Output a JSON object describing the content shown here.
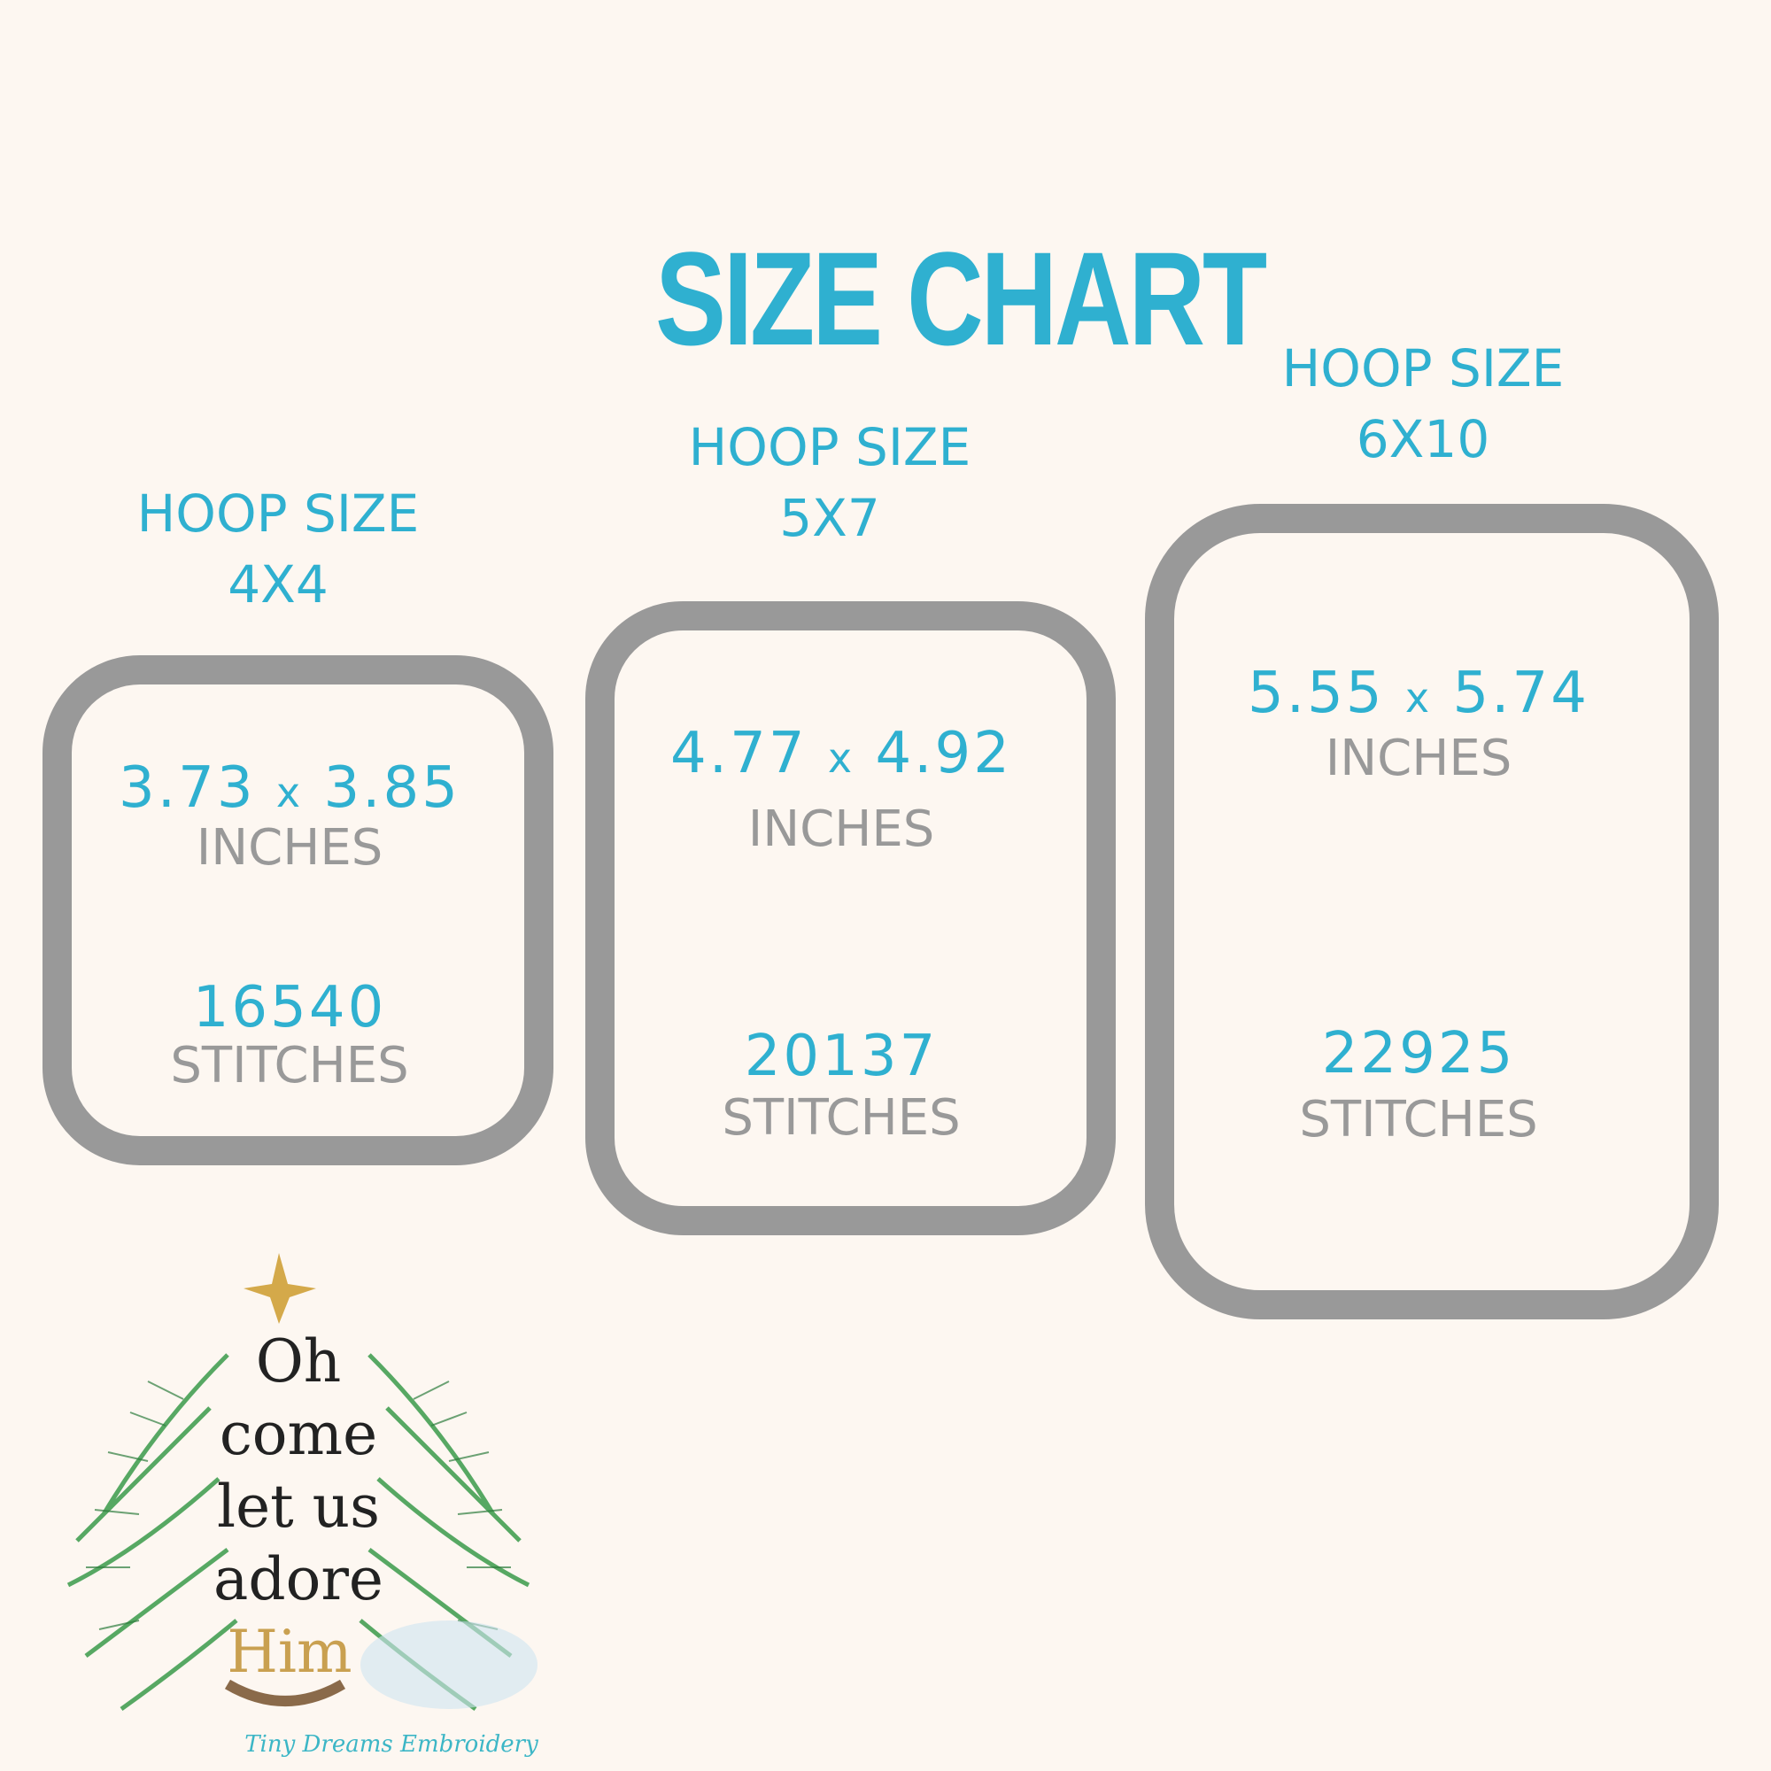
{
  "title": "SIZE CHART",
  "hoops": [
    {
      "label": "HOOP SIZE",
      "size": "4X4",
      "width": "3.73",
      "height": "3.85",
      "unit": "INCHES",
      "stitches": "16540",
      "stitches_label": "STITCHES"
    },
    {
      "label": "HOOP SIZE",
      "size": "5X7",
      "width": "4.77",
      "height": "4.92",
      "unit": "INCHES",
      "stitches": "20137",
      "stitches_label": "STITCHES"
    },
    {
      "label": "HOOP SIZE",
      "size": "6X10",
      "width": "5.55",
      "height": "5.74",
      "unit": "INCHES",
      "stitches": "22925",
      "stitches_label": "STITCHES"
    }
  ],
  "times_sign": "x",
  "design": {
    "lines": [
      "Oh",
      "come",
      "let us",
      "adore",
      "Him"
    ],
    "watermark": "Tiny Dreams Embroidery"
  },
  "colors": {
    "accent": "#2fb0d0",
    "frame": "#999999",
    "background": "#fdf7f1"
  }
}
